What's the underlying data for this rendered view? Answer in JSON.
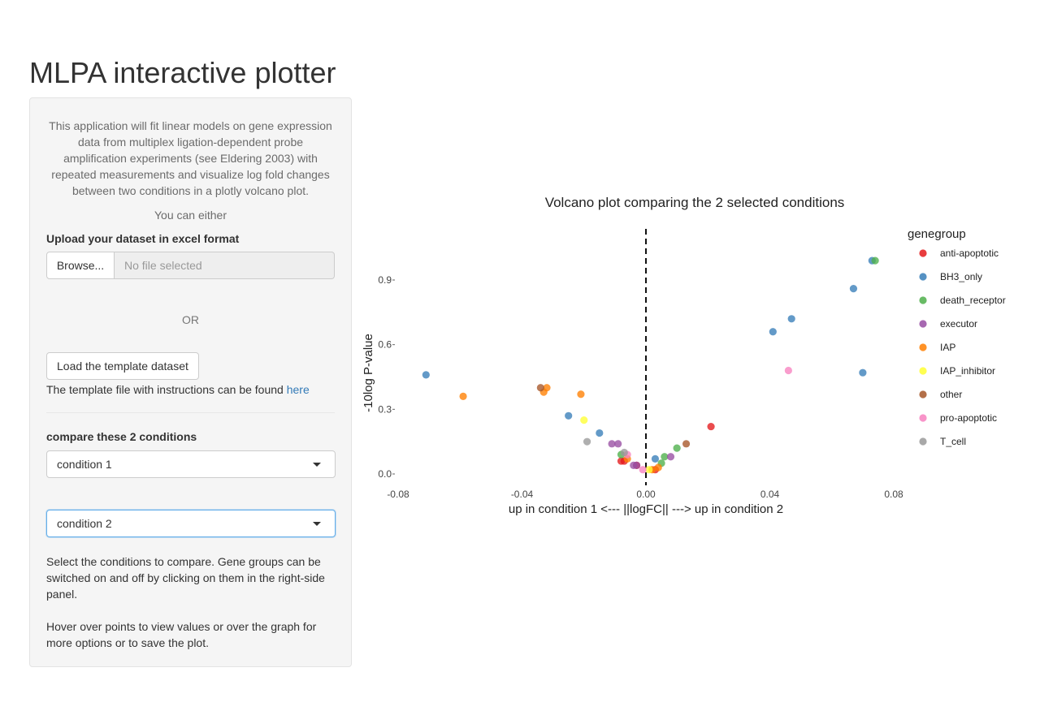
{
  "app": {
    "title": "MLPA interactive plotter"
  },
  "sidebar": {
    "intro": "This application will fit linear models on gene expression data from multiplex ligation-dependent probe amplification experiments (see Eldering 2003) with repeated measurements and visualize log fold changes between two conditions in a plotly volcano plot.",
    "you_can_either": "You can either",
    "upload_label": "Upload your dataset in excel format",
    "browse_label": "Browse...",
    "file_placeholder": "No file selected",
    "or_text": "OR",
    "template_button": "Load the template dataset",
    "template_note": "The template file with instructions can be found",
    "template_link": "here",
    "compare_label": "compare these 2 conditions",
    "condition1": "condition 1",
    "condition2": "condition 2",
    "help1": "Select the conditions to compare. Gene groups can be switched on and off by clicking on them in the right-side panel.",
    "help2": "Hover over points to view values or over the graph for more options or to save the plot."
  },
  "chart_data": {
    "type": "scatter",
    "title": "Volcano plot comparing the 2 selected conditions",
    "xlabel": "up in condition 1 <--- ||logFC|| ---> up in condition 2",
    "ylabel": "-10log P-value",
    "xlim": [
      -0.08,
      0.08
    ],
    "ylim": [
      0.0,
      0.9
    ],
    "xticks": [
      -0.08,
      -0.04,
      0.0,
      0.04,
      0.08
    ],
    "xtick_labels": [
      "-0.08",
      "-0.04",
      "0.00",
      "0.04",
      "0.08"
    ],
    "yticks": [
      0.0,
      0.3,
      0.6,
      0.9
    ],
    "ytick_labels": [
      "0.0",
      "0.3",
      "0.6",
      "0.9"
    ],
    "reference_line": {
      "x": 0,
      "style": "dashed"
    },
    "legend_title": "genegroup",
    "legend_position": "right",
    "series": [
      {
        "name": "anti-apoptotic",
        "color": "#e41a1c",
        "points": [
          [
            0.021,
            0.22
          ],
          [
            -0.008,
            0.06
          ],
          [
            -0.007,
            0.06
          ],
          [
            0.003,
            0.02
          ],
          [
            -0.003,
            0.04
          ]
        ]
      },
      {
        "name": "BH3_only",
        "color": "#377eb8",
        "points": [
          [
            0.073,
            0.99
          ],
          [
            0.067,
            0.86
          ],
          [
            0.047,
            0.72
          ],
          [
            0.041,
            0.66
          ],
          [
            0.07,
            0.47
          ],
          [
            -0.071,
            0.46
          ],
          [
            -0.025,
            0.27
          ],
          [
            -0.015,
            0.19
          ],
          [
            0.003,
            0.07
          ]
        ]
      },
      {
        "name": "death_receptor",
        "color": "#4daf4a",
        "points": [
          [
            0.074,
            0.99
          ],
          [
            0.01,
            0.12
          ],
          [
            0.006,
            0.08
          ],
          [
            0.005,
            0.05
          ],
          [
            -0.008,
            0.09
          ]
        ]
      },
      {
        "name": "executor",
        "color": "#984ea3",
        "points": [
          [
            -0.011,
            0.14
          ],
          [
            -0.009,
            0.14
          ],
          [
            0.008,
            0.08
          ],
          [
            -0.004,
            0.04
          ],
          [
            -0.003,
            0.04
          ]
        ]
      },
      {
        "name": "IAP",
        "color": "#ff7f00",
        "points": [
          [
            -0.059,
            0.36
          ],
          [
            -0.033,
            0.38
          ],
          [
            -0.032,
            0.4
          ],
          [
            -0.021,
            0.37
          ],
          [
            -0.006,
            0.07
          ],
          [
            0.004,
            0.03
          ],
          [
            0.002,
            0.02
          ]
        ]
      },
      {
        "name": "IAP_inhibitor",
        "color": "#ffff33",
        "points": [
          [
            -0.02,
            0.25
          ],
          [
            0.001,
            0.02
          ]
        ]
      },
      {
        "name": "other",
        "color": "#a65628",
        "points": [
          [
            -0.034,
            0.4
          ],
          [
            0.013,
            0.14
          ]
        ]
      },
      {
        "name": "pro-apoptotic",
        "color": "#f781bf",
        "points": [
          [
            0.046,
            0.48
          ],
          [
            -0.006,
            0.09
          ],
          [
            -0.001,
            0.02
          ]
        ]
      },
      {
        "name": "T_cell",
        "color": "#999999",
        "points": [
          [
            -0.019,
            0.15
          ],
          [
            -0.007,
            0.1
          ]
        ]
      }
    ]
  }
}
